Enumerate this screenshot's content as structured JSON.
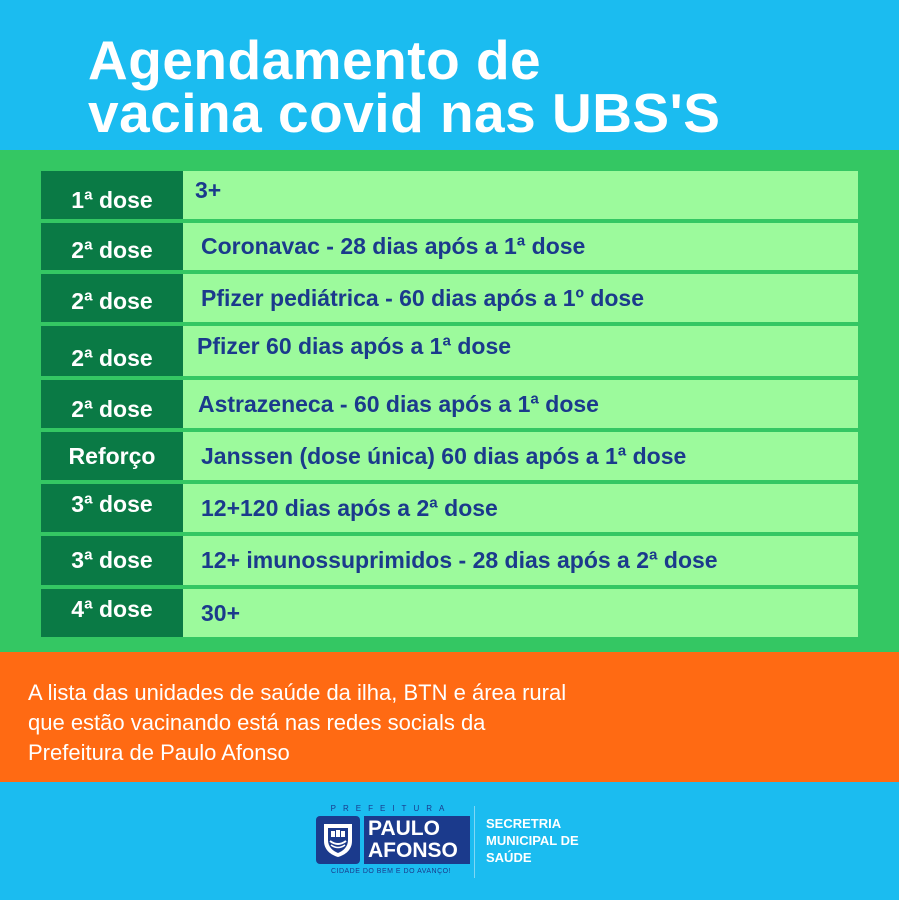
{
  "header": {
    "title_line1": "Agendamento de",
    "title_line2": "vacina covid nas UBS'S"
  },
  "schedule": [
    {
      "dose": "1ª dose",
      "desc": "3+"
    },
    {
      "dose": "2ª dose",
      "desc": "Coronavac - 28 dias após a 1ª dose"
    },
    {
      "dose": "2ª dose",
      "desc": "Pfizer pediátrica - 60 dias após a 1º dose"
    },
    {
      "dose": "2ª dose",
      "desc": "Pfizer 60 dias após a 1ª dose"
    },
    {
      "dose": "2ª dose",
      "desc": "Astrazeneca - 60 dias após a 1ª dose"
    },
    {
      "dose": "Reforço",
      "desc": "Janssen (dose única) 60 dias após a 1ª dose"
    },
    {
      "dose": "3ª dose",
      "desc": "12+120 dias após a 2ª dose"
    },
    {
      "dose": "3ª dose",
      "desc": "12+ imunossuprimidos - 28 dias após a 2ª dose"
    },
    {
      "dose": "4ª dose",
      "desc": "30+"
    }
  ],
  "notice": {
    "line1": "A lista das unidades de saúde da ilha, BTN e área rural",
    "line2": "que estão vacinando está nas redes socials da",
    "line3": "Prefeitura de Paulo Afonso"
  },
  "footer": {
    "logo_top": "PREFEITURA",
    "logo_name_line1": "PAULO",
    "logo_name_line2": "AFONSO",
    "logo_slogan": "CIDADE DO BEM E DO AVANÇO!",
    "secretaria_line1": "SECRETRIA",
    "secretaria_line2": "MUNICIPAL DE",
    "secretaria_line3": "SAÚDE"
  },
  "colors": {
    "header_bg": "#1bbcf0",
    "panel_green": "#34c763",
    "dose_cell": "#0a7a45",
    "desc_cell": "#9cfa9c",
    "desc_text": "#1b3a8c",
    "notice_bg": "#ff6a13"
  }
}
